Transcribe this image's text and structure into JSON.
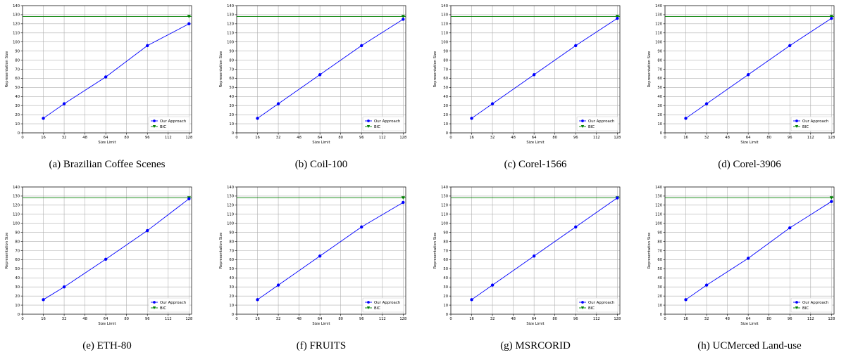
{
  "chart_data": [
    {
      "type": "line",
      "caption": "(a) Brazilian Coffee Scenes",
      "xlabel": "Size Limit",
      "ylabel": "Representation Size",
      "xlim": [
        0,
        130
      ],
      "ylim": [
        0,
        140
      ],
      "xticks": [
        0,
        16,
        32,
        48,
        64,
        80,
        96,
        112,
        128
      ],
      "yticks": [
        0,
        10,
        20,
        30,
        40,
        50,
        60,
        70,
        80,
        90,
        100,
        110,
        120,
        130,
        140
      ],
      "grid": true,
      "legend_position": "lower-right",
      "series": [
        {
          "name": "Our Approach",
          "color": "#0000ff",
          "marker": "circle",
          "x": [
            16,
            32,
            64,
            96,
            128
          ],
          "y": [
            16,
            32,
            61.5,
            96,
            120
          ]
        },
        {
          "name": "BIC",
          "color": "#008000",
          "marker": "triangle-down",
          "horizontal_line": 128,
          "x": [
            128
          ],
          "y": [
            128
          ]
        }
      ]
    },
    {
      "type": "line",
      "caption": "(b) Coil-100",
      "xlabel": "Size Limit",
      "ylabel": "Representation Size",
      "xlim": [
        0,
        130
      ],
      "ylim": [
        0,
        140
      ],
      "xticks": [
        0,
        16,
        32,
        48,
        64,
        80,
        96,
        112,
        128
      ],
      "yticks": [
        0,
        10,
        20,
        30,
        40,
        50,
        60,
        70,
        80,
        90,
        100,
        110,
        120,
        130,
        140
      ],
      "grid": true,
      "legend_position": "lower-right",
      "series": [
        {
          "name": "Our Approach",
          "color": "#0000ff",
          "marker": "circle",
          "x": [
            16,
            32,
            64,
            96,
            128
          ],
          "y": [
            16,
            32,
            64,
            96,
            125
          ]
        },
        {
          "name": "BIC",
          "color": "#008000",
          "marker": "triangle-down",
          "horizontal_line": 128,
          "x": [
            128
          ],
          "y": [
            128
          ]
        }
      ]
    },
    {
      "type": "line",
      "caption": "(c) Corel-1566",
      "xlabel": "Size Limit",
      "ylabel": "Representation Size",
      "xlim": [
        0,
        130
      ],
      "ylim": [
        0,
        140
      ],
      "xticks": [
        0,
        16,
        32,
        48,
        64,
        80,
        96,
        112,
        128
      ],
      "yticks": [
        0,
        10,
        20,
        30,
        40,
        50,
        60,
        70,
        80,
        90,
        100,
        110,
        120,
        130,
        140
      ],
      "grid": true,
      "legend_position": "lower-right",
      "series": [
        {
          "name": "Our Approach",
          "color": "#0000ff",
          "marker": "circle",
          "x": [
            16,
            32,
            64,
            96,
            128
          ],
          "y": [
            16,
            32,
            64,
            96,
            126
          ]
        },
        {
          "name": "BIC",
          "color": "#008000",
          "marker": "triangle-down",
          "horizontal_line": 128,
          "x": [
            128
          ],
          "y": [
            128
          ]
        }
      ]
    },
    {
      "type": "line",
      "caption": "(d) Corel-3906",
      "xlabel": "Size Limit",
      "ylabel": "Representation Size",
      "xlim": [
        0,
        130
      ],
      "ylim": [
        0,
        140
      ],
      "xticks": [
        0,
        16,
        32,
        48,
        64,
        80,
        96,
        112,
        128
      ],
      "yticks": [
        0,
        10,
        20,
        30,
        40,
        50,
        60,
        70,
        80,
        90,
        100,
        110,
        120,
        130,
        140
      ],
      "grid": true,
      "legend_position": "lower-right",
      "series": [
        {
          "name": "Our Approach",
          "color": "#0000ff",
          "marker": "circle",
          "x": [
            16,
            32,
            64,
            96,
            128
          ],
          "y": [
            16,
            32,
            64,
            96,
            126
          ]
        },
        {
          "name": "BIC",
          "color": "#008000",
          "marker": "triangle-down",
          "horizontal_line": 128,
          "x": [
            128
          ],
          "y": [
            128
          ]
        }
      ]
    },
    {
      "type": "line",
      "caption": "(e) ETH-80",
      "xlabel": "Size Limit",
      "ylabel": "Representation Size",
      "xlim": [
        0,
        130
      ],
      "ylim": [
        0,
        140
      ],
      "xticks": [
        0,
        16,
        32,
        48,
        64,
        80,
        96,
        112,
        128
      ],
      "yticks": [
        0,
        10,
        20,
        30,
        40,
        50,
        60,
        70,
        80,
        90,
        100,
        110,
        120,
        130,
        140
      ],
      "grid": true,
      "legend_position": "lower-right",
      "series": [
        {
          "name": "Our Approach",
          "color": "#0000ff",
          "marker": "circle",
          "x": [
            16,
            32,
            64,
            96,
            128
          ],
          "y": [
            16,
            30,
            60.5,
            92,
            127
          ]
        },
        {
          "name": "BIC",
          "color": "#008000",
          "marker": "triangle-down",
          "horizontal_line": 128,
          "x": [
            128
          ],
          "y": [
            128
          ]
        }
      ]
    },
    {
      "type": "line",
      "caption": "(f) FRUITS",
      "xlabel": "Size Limit",
      "ylabel": "Representation Size",
      "xlim": [
        0,
        130
      ],
      "ylim": [
        0,
        140
      ],
      "xticks": [
        0,
        16,
        32,
        48,
        64,
        80,
        96,
        112,
        128
      ],
      "yticks": [
        0,
        10,
        20,
        30,
        40,
        50,
        60,
        70,
        80,
        90,
        100,
        110,
        120,
        130,
        140
      ],
      "grid": true,
      "legend_position": "lower-right",
      "series": [
        {
          "name": "Our Approach",
          "color": "#0000ff",
          "marker": "circle",
          "x": [
            16,
            32,
            64,
            96,
            128
          ],
          "y": [
            16,
            32,
            64,
            96,
            123
          ]
        },
        {
          "name": "BIC",
          "color": "#008000",
          "marker": "triangle-down",
          "horizontal_line": 128,
          "x": [
            128
          ],
          "y": [
            128
          ]
        }
      ]
    },
    {
      "type": "line",
      "caption": "(g) MSRCORID",
      "xlabel": "Size Limit",
      "ylabel": "Representation Size",
      "xlim": [
        0,
        130
      ],
      "ylim": [
        0,
        140
      ],
      "xticks": [
        0,
        16,
        32,
        48,
        64,
        80,
        96,
        112,
        128
      ],
      "yticks": [
        0,
        10,
        20,
        30,
        40,
        50,
        60,
        70,
        80,
        90,
        100,
        110,
        120,
        130,
        140
      ],
      "grid": true,
      "legend_position": "lower-right",
      "series": [
        {
          "name": "Our Approach",
          "color": "#0000ff",
          "marker": "circle",
          "x": [
            16,
            32,
            64,
            96,
            128
          ],
          "y": [
            16,
            32,
            64,
            96,
            128
          ]
        },
        {
          "name": "BIC",
          "color": "#008000",
          "marker": "triangle-down",
          "horizontal_line": 128,
          "x": [
            128
          ],
          "y": [
            128
          ]
        }
      ]
    },
    {
      "type": "line",
      "caption": "(h) UCMerced Land-use",
      "xlabel": "Size Limit",
      "ylabel": "Representation Size",
      "xlim": [
        0,
        130
      ],
      "ylim": [
        0,
        140
      ],
      "xticks": [
        0,
        16,
        32,
        48,
        64,
        80,
        96,
        112,
        128
      ],
      "yticks": [
        0,
        10,
        20,
        30,
        40,
        50,
        60,
        70,
        80,
        90,
        100,
        110,
        120,
        130,
        140
      ],
      "grid": true,
      "legend_position": "lower-right",
      "series": [
        {
          "name": "Our Approach",
          "color": "#0000ff",
          "marker": "circle",
          "x": [
            16,
            32,
            64,
            96,
            128
          ],
          "y": [
            16,
            32,
            61.5,
            95,
            124
          ]
        },
        {
          "name": "BIC",
          "color": "#008000",
          "marker": "triangle-down",
          "horizontal_line": 128,
          "x": [
            128
          ],
          "y": [
            128
          ]
        }
      ]
    }
  ]
}
